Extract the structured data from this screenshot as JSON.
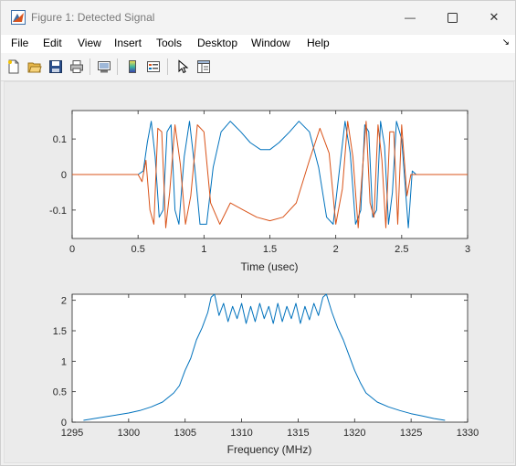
{
  "window": {
    "title": "Figure 1: Detected Signal",
    "minimize_glyph": "—",
    "close_glyph": "✕"
  },
  "menubar": {
    "items": [
      "File",
      "Edit",
      "View",
      "Insert",
      "Tools",
      "Desktop",
      "Window",
      "Help"
    ],
    "overflow_glyph": "↘"
  },
  "toolbar": {
    "icons": [
      "new-figure-icon",
      "open-file-icon",
      "save-icon",
      "print-icon",
      "link-plot-icon",
      "insert-colorbar-icon",
      "insert-legend-icon",
      "edit-plot-icon",
      "property-inspector-icon"
    ]
  },
  "colors": {
    "series1": "#0072BD",
    "series2": "#D95319",
    "axes_bg": "#ffffff",
    "figure_bg": "#ebebeb"
  },
  "chart_data": [
    {
      "type": "line",
      "xlabel": "Time (usec)",
      "ylabel": "",
      "xlim": [
        0,
        3
      ],
      "ylim": [
        -0.18,
        0.18
      ],
      "xticks": [
        0,
        0.5,
        1,
        1.5,
        2,
        2.5,
        3
      ],
      "xtick_labels": [
        "0",
        "0.5",
        "1",
        "1.5",
        "2",
        "2.5",
        "3"
      ],
      "yticks": [
        -0.1,
        0,
        0.1
      ],
      "ytick_labels": [
        "-0.1",
        "0",
        "0.1"
      ],
      "series": [
        {
          "color": "#0072BD",
          "x": [
            0,
            0.5,
            0.54,
            0.57,
            0.6,
            0.63,
            0.66,
            0.69,
            0.72,
            0.75,
            0.78,
            0.81,
            0.85,
            0.89,
            0.93,
            0.97,
            1.02,
            1.07,
            1.13,
            1.2,
            1.28,
            1.35,
            1.43,
            1.5,
            1.57,
            1.65,
            1.72,
            1.8,
            1.87,
            1.93,
            1.98,
            2.03,
            2.07,
            2.11,
            2.15,
            2.19,
            2.22,
            2.25,
            2.28,
            2.31,
            2.34,
            2.37,
            2.4,
            2.43,
            2.46,
            2.5,
            2.55,
            2.58,
            2.61,
            2.65,
            3
          ],
          "y": [
            0,
            0,
            0.01,
            0.09,
            0.15,
            0.05,
            -0.12,
            -0.1,
            0.12,
            0.14,
            -0.1,
            -0.14,
            0.05,
            0.15,
            0.02,
            -0.14,
            -0.14,
            0.02,
            0.12,
            0.15,
            0.12,
            0.09,
            0.07,
            0.07,
            0.09,
            0.12,
            0.15,
            0.12,
            0.02,
            -0.12,
            -0.14,
            0.02,
            0.15,
            0.06,
            -0.14,
            -0.1,
            0.14,
            0.12,
            -0.12,
            -0.1,
            0.15,
            0.08,
            -0.14,
            -0.05,
            0.15,
            0.1,
            -0.15,
            0.01,
            0.0,
            0.0,
            0
          ]
        },
        {
          "color": "#D95319",
          "x": [
            0,
            0.5,
            0.53,
            0.56,
            0.59,
            0.62,
            0.65,
            0.68,
            0.71,
            0.74,
            0.78,
            0.82,
            0.86,
            0.9,
            0.95,
            1.0,
            1.05,
            1.12,
            1.2,
            1.3,
            1.4,
            1.5,
            1.6,
            1.7,
            1.8,
            1.88,
            1.95,
            2.0,
            2.05,
            2.09,
            2.13,
            2.17,
            2.2,
            2.23,
            2.26,
            2.29,
            2.32,
            2.35,
            2.38,
            2.41,
            2.44,
            2.47,
            2.5,
            2.54,
            2.57,
            2.6,
            2.64,
            3
          ],
          "y": [
            0,
            0,
            -0.02,
            0.04,
            -0.1,
            -0.14,
            0.13,
            0.12,
            -0.15,
            -0.05,
            0.14,
            0.03,
            -0.14,
            -0.06,
            0.14,
            0.12,
            -0.08,
            -0.14,
            -0.08,
            -0.1,
            -0.12,
            -0.13,
            -0.12,
            -0.08,
            0.04,
            0.13,
            0.06,
            -0.14,
            -0.04,
            0.15,
            0.05,
            -0.15,
            0.0,
            0.15,
            -0.08,
            -0.12,
            0.14,
            0.04,
            -0.15,
            0.12,
            0.12,
            -0.14,
            0.14,
            -0.06,
            0.0,
            0.0,
            0.0,
            0
          ]
        }
      ]
    },
    {
      "type": "line",
      "xlabel": "Frequency (MHz)",
      "ylabel": "",
      "xlim": [
        1295,
        1330
      ],
      "ylim": [
        0,
        2.1
      ],
      "xticks": [
        1295,
        1300,
        1305,
        1310,
        1315,
        1320,
        1325,
        1330
      ],
      "xtick_labels": [
        "1295",
        "1300",
        "1305",
        "1310",
        "1315",
        "1320",
        "1325",
        "1330"
      ],
      "yticks": [
        0,
        0.5,
        1,
        1.5,
        2
      ],
      "ytick_labels": [
        "0",
        "0.5",
        "1",
        "1.5",
        "2"
      ],
      "series": [
        {
          "color": "#0072BD",
          "x": [
            1296,
            1297,
            1298,
            1299,
            1300,
            1301,
            1302,
            1303,
            1304,
            1304.5,
            1305,
            1305.5,
            1306,
            1306.5,
            1307,
            1307.3,
            1307.6,
            1308,
            1308.4,
            1308.8,
            1309.2,
            1309.6,
            1310,
            1310.4,
            1310.8,
            1311.2,
            1311.6,
            1312,
            1312.4,
            1312.8,
            1313.2,
            1313.6,
            1314,
            1314.4,
            1314.8,
            1315.2,
            1315.6,
            1316,
            1316.4,
            1316.8,
            1317.2,
            1317.5,
            1318,
            1318.5,
            1319,
            1319.5,
            1320,
            1320.5,
            1321,
            1322,
            1323,
            1324,
            1325,
            1326,
            1327,
            1328
          ],
          "y": [
            0.03,
            0.06,
            0.09,
            0.12,
            0.15,
            0.19,
            0.25,
            0.33,
            0.48,
            0.6,
            0.85,
            1.05,
            1.35,
            1.55,
            1.8,
            2.05,
            2.1,
            1.75,
            1.95,
            1.65,
            1.9,
            1.7,
            1.95,
            1.62,
            1.9,
            1.65,
            1.95,
            1.7,
            1.9,
            1.62,
            1.95,
            1.65,
            1.9,
            1.7,
            1.95,
            1.62,
            1.9,
            1.68,
            1.95,
            1.75,
            2.05,
            2.1,
            1.8,
            1.55,
            1.35,
            1.1,
            0.85,
            0.65,
            0.48,
            0.33,
            0.25,
            0.19,
            0.14,
            0.1,
            0.06,
            0.03
          ]
        }
      ]
    }
  ]
}
